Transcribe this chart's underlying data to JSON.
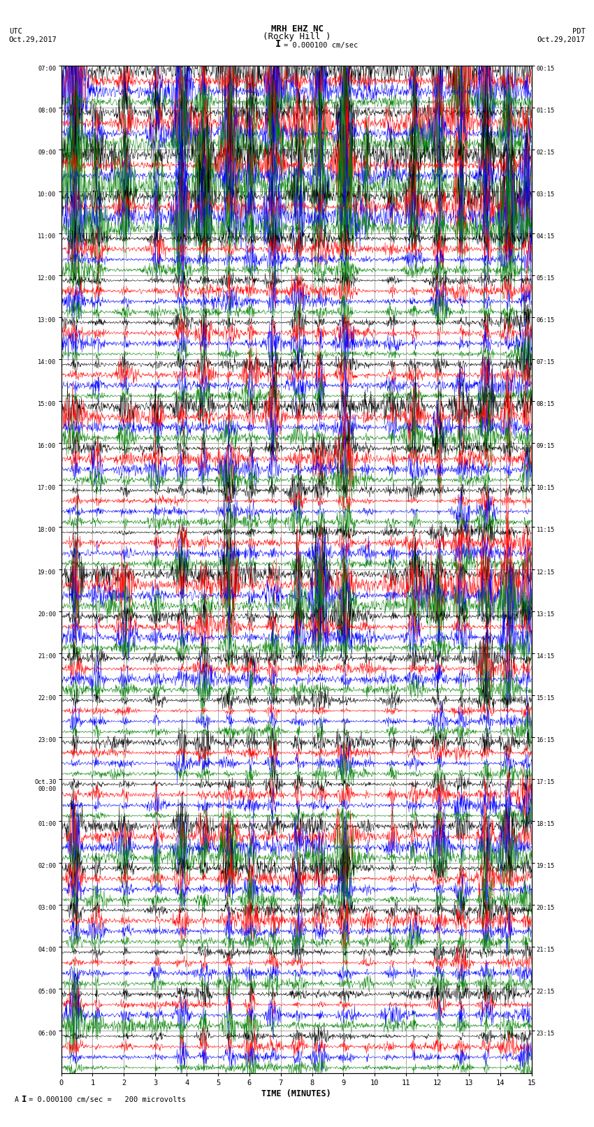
{
  "title_line1": "MRH EHZ NC",
  "title_line2": "(Rocky Hill )",
  "scale_label": "= 0.000100 cm/sec",
  "left_label_top": "UTC",
  "left_label_date": "Oct.29,2017",
  "right_label_top": "PDT",
  "right_label_date": "Oct.29,2017",
  "bottom_label": "TIME (MINUTES)",
  "footer_label": "= 0.000100 cm/sec =   200 microvolts",
  "footer_prefix": "A",
  "utc_times": [
    "07:00",
    "08:00",
    "09:00",
    "10:00",
    "11:00",
    "12:00",
    "13:00",
    "14:00",
    "15:00",
    "16:00",
    "17:00",
    "18:00",
    "19:00",
    "20:00",
    "21:00",
    "22:00",
    "23:00",
    "Oct.30\n00:00",
    "01:00",
    "02:00",
    "03:00",
    "04:00",
    "05:00",
    "06:00"
  ],
  "pdt_times": [
    "00:15",
    "01:15",
    "02:15",
    "03:15",
    "04:15",
    "05:15",
    "06:15",
    "07:15",
    "08:15",
    "09:15",
    "10:15",
    "11:15",
    "12:15",
    "13:15",
    "14:15",
    "15:15",
    "16:15",
    "17:15",
    "18:15",
    "19:15",
    "20:15",
    "21:15",
    "22:15",
    "23:15"
  ],
  "n_rows": 24,
  "minutes": 15,
  "colors": [
    "black",
    "red",
    "blue",
    "green"
  ],
  "background_color": "white",
  "grid_color": "#888888",
  "seed": 12345
}
